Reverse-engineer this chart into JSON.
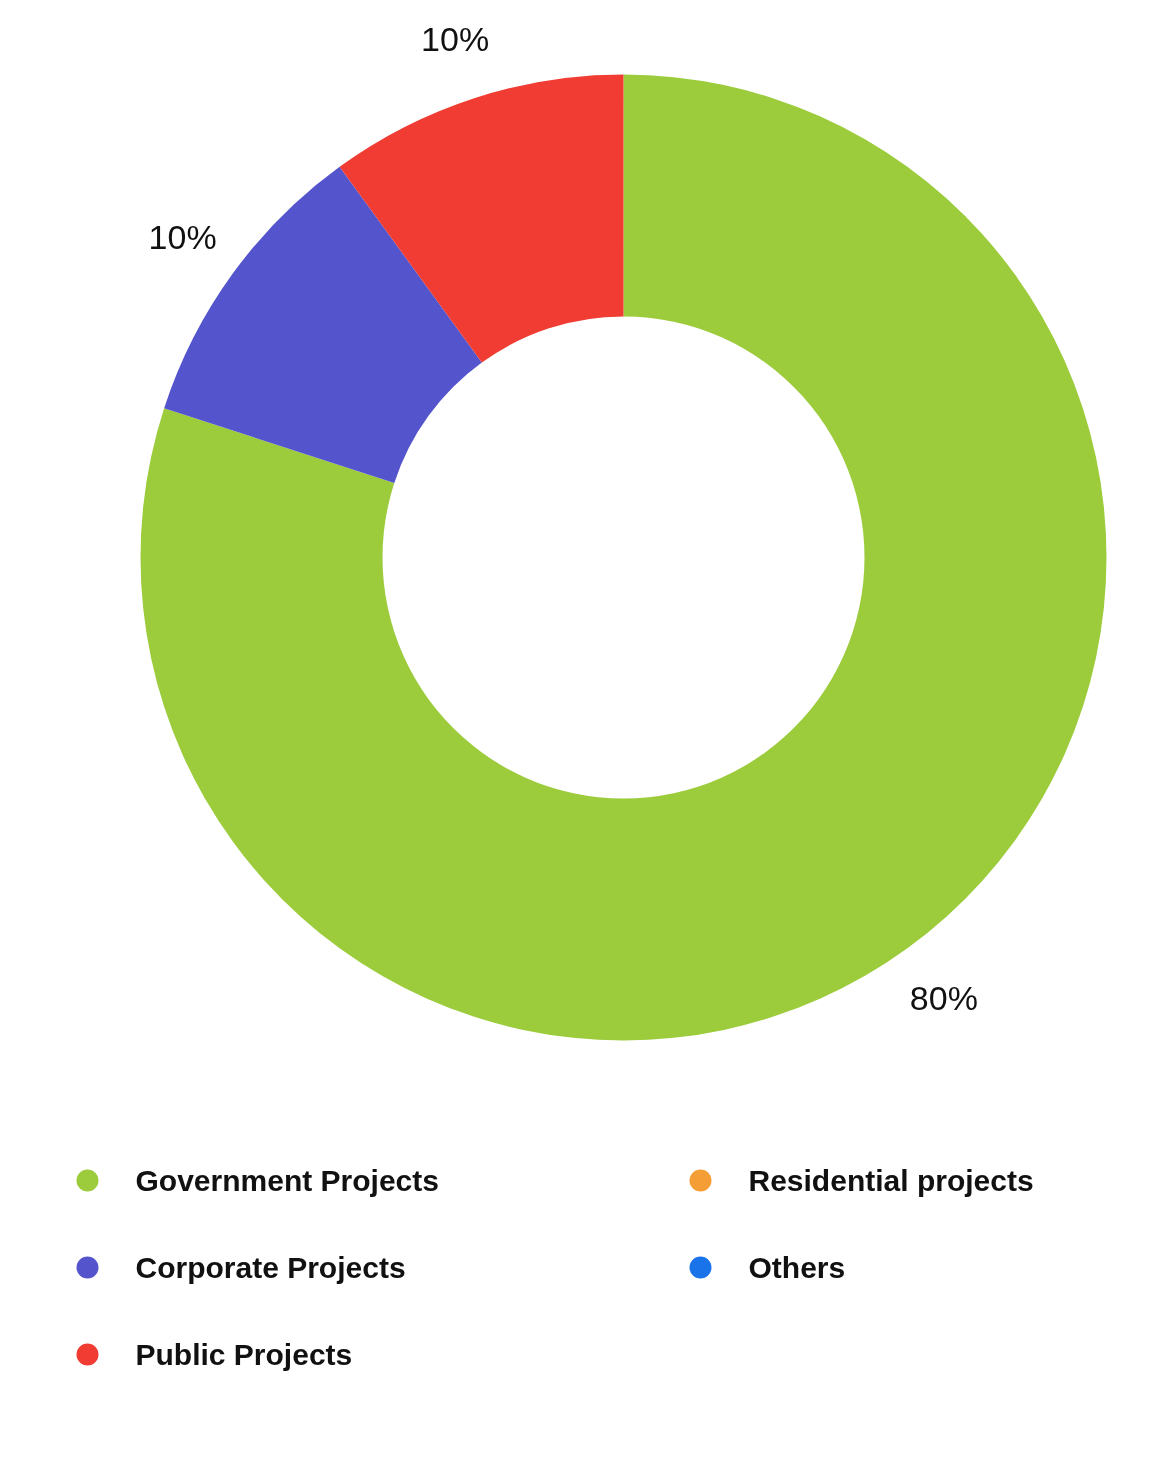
{
  "chart_data": {
    "type": "donut",
    "categories": [
      "Government Projects",
      "Corporate Projects",
      "Public Projects",
      "Residential projects",
      "Others"
    ],
    "values": [
      80,
      10,
      10,
      0,
      0
    ],
    "colors": [
      "#9ccc3c",
      "#5454cc",
      "#f03c32",
      "#f59e35",
      "#1a73e8"
    ],
    "value_labels": [
      "80%",
      "10%",
      "10%",
      null,
      null
    ],
    "legend": "bottom"
  }
}
